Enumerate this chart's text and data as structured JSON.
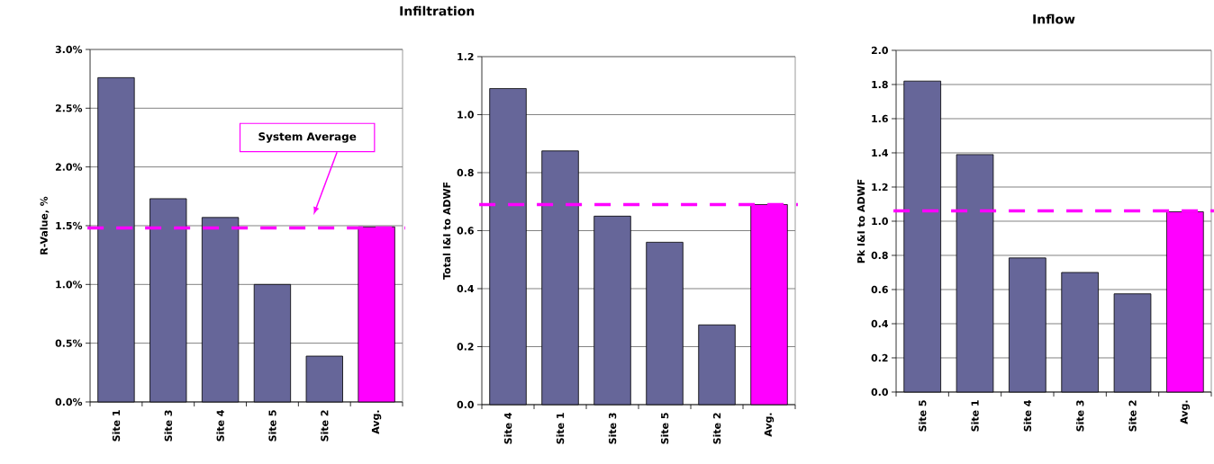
{
  "chart_data": [
    {
      "type": "bar",
      "title": "Infiltration",
      "ylabel": "R-Value, %",
      "categories": [
        "Site 1",
        "Site 3",
        "Site 4",
        "Site 5",
        "Site 2",
        "Avg."
      ],
      "values": [
        2.76,
        1.73,
        1.57,
        1.0,
        0.39,
        1.49
      ],
      "colors": [
        "#666699",
        "#666699",
        "#666699",
        "#666699",
        "#666699",
        "#ff00ff"
      ],
      "ylim": [
        0,
        3.0
      ],
      "yticks": [
        {
          "value": 0,
          "label": "0.0%"
        },
        {
          "value": 0.5,
          "label": "0.5%"
        },
        {
          "value": 1.0,
          "label": "1.0%"
        },
        {
          "value": 1.5,
          "label": "1.5%"
        },
        {
          "value": 2.0,
          "label": "2.0%"
        },
        {
          "value": 2.5,
          "label": "2.5%"
        },
        {
          "value": 3.0,
          "label": "3.0%"
        }
      ],
      "grid": "y",
      "ref_lines": [
        {
          "axis": "y",
          "value": 1.48,
          "color": "#ff00ff",
          "line_style": "dashed"
        }
      ],
      "annotations": [
        "System Average"
      ]
    },
    {
      "type": "bar",
      "ylabel": "Total I&I to ADWF",
      "categories": [
        "Site 4",
        "Site 1",
        "Site 3",
        "Site 5",
        "Site 2",
        "Avg."
      ],
      "values": [
        1.09,
        0.875,
        0.65,
        0.56,
        0.275,
        0.69
      ],
      "colors": [
        "#666699",
        "#666699",
        "#666699",
        "#666699",
        "#666699",
        "#ff00ff"
      ],
      "ylim": [
        0,
        1.2
      ],
      "yticks": [
        {
          "value": 0,
          "label": "0.0"
        },
        {
          "value": 0.2,
          "label": "0.2"
        },
        {
          "value": 0.4,
          "label": "0.4"
        },
        {
          "value": 0.6,
          "label": "0.6"
        },
        {
          "value": 0.8,
          "label": "0.8"
        },
        {
          "value": 1.0,
          "label": "1.0"
        },
        {
          "value": 1.2,
          "label": "1.2"
        }
      ],
      "grid": "y",
      "ref_lines": [
        {
          "axis": "y",
          "value": 0.69,
          "color": "#ff00ff",
          "line_style": "dashed"
        }
      ]
    },
    {
      "type": "bar",
      "title": "Inflow",
      "ylabel": "Pk I&I to ADWF",
      "categories": [
        "Site 5",
        "Site 1",
        "Site 4",
        "Site 3",
        "Site 2",
        "Avg."
      ],
      "values": [
        1.82,
        1.39,
        0.785,
        0.7,
        0.575,
        1.055
      ],
      "colors": [
        "#666699",
        "#666699",
        "#666699",
        "#666699",
        "#666699",
        "#ff00ff"
      ],
      "ylim": [
        0,
        2.0
      ],
      "yticks": [
        {
          "value": 0,
          "label": "0.0"
        },
        {
          "value": 0.2,
          "label": "0.2"
        },
        {
          "value": 0.4,
          "label": "0.4"
        },
        {
          "value": 0.6,
          "label": "0.6"
        },
        {
          "value": 0.8,
          "label": "0.8"
        },
        {
          "value": 1.0,
          "label": "1.0"
        },
        {
          "value": 1.2,
          "label": "1.2"
        },
        {
          "value": 1.4,
          "label": "1.4"
        },
        {
          "value": 1.6,
          "label": "1.6"
        },
        {
          "value": 1.8,
          "label": "1.8"
        },
        {
          "value": 2.0,
          "label": "2.0"
        }
      ],
      "grid": "y",
      "ref_lines": [
        {
          "axis": "y",
          "value": 1.06,
          "color": "#ff00ff",
          "line_style": "dashed"
        }
      ]
    }
  ]
}
